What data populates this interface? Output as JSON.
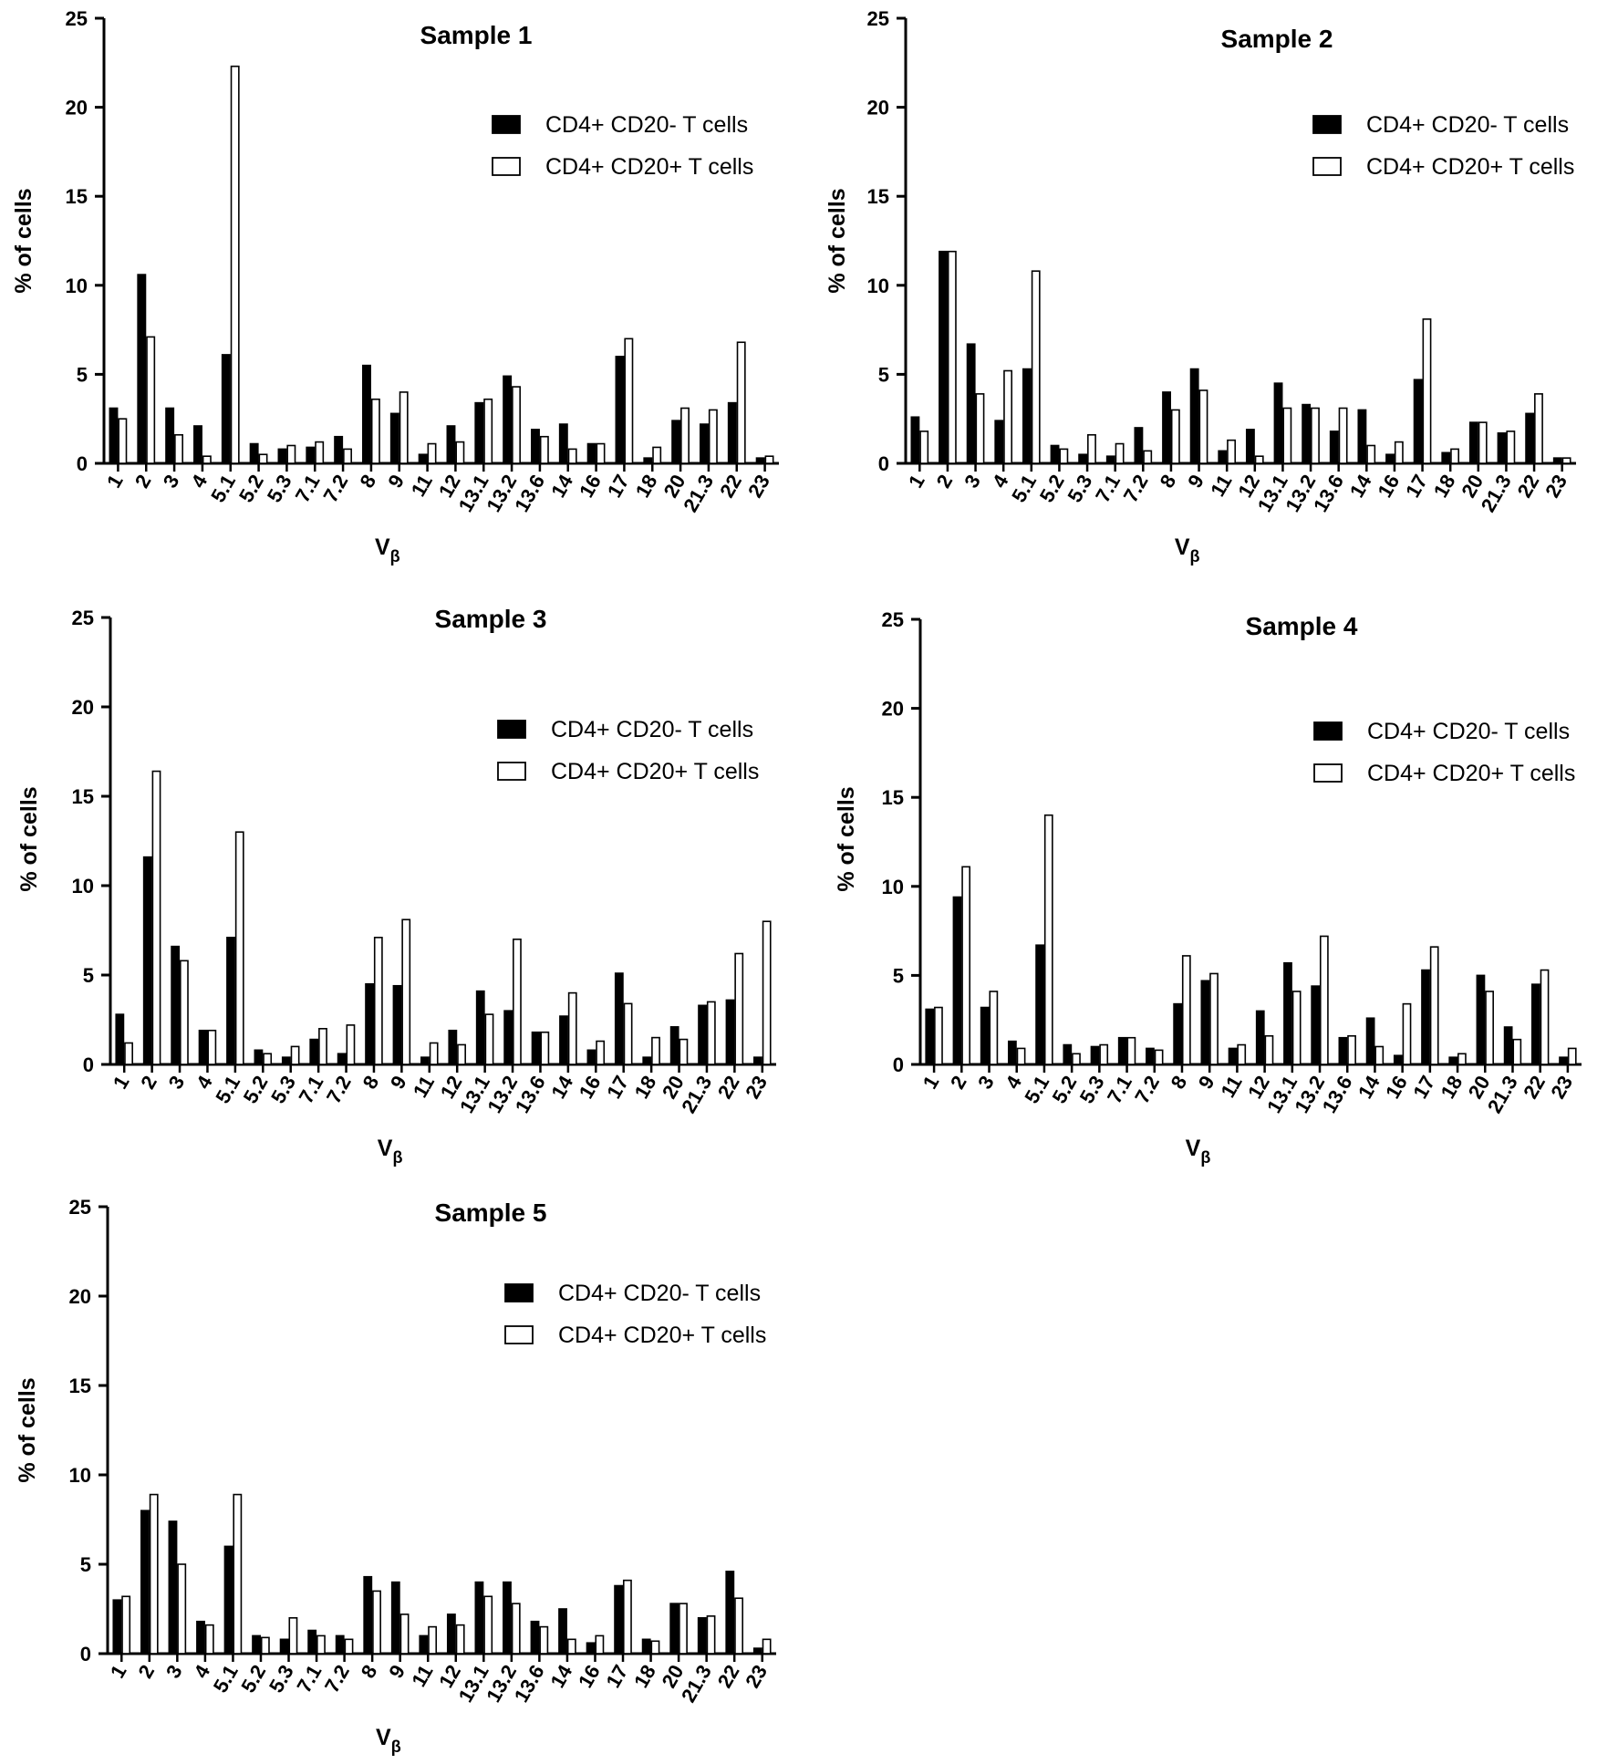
{
  "figure": {
    "chart_data": [
      {
        "type": "bar",
        "title": "Sample 1",
        "xlabel": "V",
        "xlabel_subscript": "β",
        "ylabel": "% of cells",
        "ylim": [
          0,
          25
        ],
        "yticks": [
          "0",
          "5",
          "10",
          "15",
          "20",
          "25"
        ],
        "legend_position": "top-right",
        "categories": [
          "1",
          "2",
          "3",
          "4",
          "5.1",
          "5.2",
          "5.3",
          "7.1",
          "7.2",
          "8",
          "9",
          "11",
          "12",
          "13.1",
          "13.2",
          "13.6",
          "14",
          "16",
          "17",
          "18",
          "20",
          "21.3",
          "22",
          "23"
        ],
        "series": [
          {
            "name": "CD4+ CD20- T cells",
            "fill": "#000000",
            "values": [
              3.1,
              10.6,
              3.1,
              2.1,
              6.1,
              1.1,
              0.8,
              0.9,
              1.5,
              5.5,
              2.8,
              0.5,
              2.1,
              3.4,
              4.9,
              1.9,
              2.2,
              1.1,
              6.0,
              0.3,
              2.4,
              2.2,
              3.4,
              0.3
            ]
          },
          {
            "name": "CD4+ CD20+ T cells",
            "fill": "#ffffff",
            "values": [
              2.5,
              7.1,
              1.6,
              0.4,
              22.3,
              0.5,
              1.0,
              1.2,
              0.8,
              3.6,
              4.0,
              1.1,
              1.2,
              3.6,
              4.3,
              1.5,
              0.8,
              1.1,
              7.0,
              0.9,
              3.1,
              3.0,
              6.8,
              0.4
            ]
          }
        ]
      },
      {
        "type": "bar",
        "title": "Sample 2",
        "xlabel": "V",
        "xlabel_subscript": "β",
        "ylabel": "% of cells",
        "ylim": [
          0,
          25
        ],
        "yticks": [
          "0",
          "5",
          "10",
          "15",
          "20",
          "25"
        ],
        "legend_position": "top-right",
        "categories": [
          "1",
          "2",
          "3",
          "4",
          "5.1",
          "5.2",
          "5.3",
          "7.1",
          "7.2",
          "8",
          "9",
          "11",
          "12",
          "13.1",
          "13.2",
          "13.6",
          "14",
          "16",
          "17",
          "18",
          "20",
          "21.3",
          "22",
          "23"
        ],
        "series": [
          {
            "name": "CD4+ CD20- T cells",
            "fill": "#000000",
            "values": [
              2.6,
              11.9,
              6.7,
              2.4,
              5.3,
              1.0,
              0.5,
              0.4,
              2.0,
              4.0,
              5.3,
              0.7,
              1.9,
              4.5,
              3.3,
              1.8,
              3.0,
              0.5,
              4.7,
              0.6,
              2.3,
              1.7,
              2.8,
              0.3
            ]
          },
          {
            "name": "CD4+ CD20+ T cells",
            "fill": "#ffffff",
            "values": [
              1.8,
              11.9,
              3.9,
              5.2,
              10.8,
              0.8,
              1.6,
              1.1,
              0.7,
              3.0,
              4.1,
              1.3,
              0.4,
              3.1,
              3.1,
              3.1,
              1.0,
              1.2,
              8.1,
              0.8,
              2.3,
              1.8,
              3.9,
              0.3
            ]
          }
        ]
      },
      {
        "type": "bar",
        "title": "Sample 3",
        "xlabel": "V",
        "xlabel_subscript": "β",
        "ylabel": "% of cells",
        "ylim": [
          0,
          25
        ],
        "yticks": [
          "0",
          "5",
          "10",
          "15",
          "20",
          "25"
        ],
        "legend_position": "top-right",
        "categories": [
          "1",
          "2",
          "3",
          "4",
          "5.1",
          "5.2",
          "5.3",
          "7.1",
          "7.2",
          "8",
          "9",
          "11",
          "12",
          "13.1",
          "13.2",
          "13.6",
          "14",
          "16",
          "17",
          "18",
          "20",
          "21.3",
          "22",
          "23"
        ],
        "series": [
          {
            "name": "CD4+ CD20- T cells",
            "fill": "#000000",
            "values": [
              2.8,
              11.6,
              6.6,
              1.9,
              7.1,
              0.8,
              0.4,
              1.4,
              0.6,
              4.5,
              4.4,
              0.4,
              1.9,
              4.1,
              3.0,
              1.8,
              2.7,
              0.8,
              5.1,
              0.4,
              2.1,
              3.3,
              3.6,
              0.4
            ]
          },
          {
            "name": "CD4+ CD20+ T cells",
            "fill": "#ffffff",
            "values": [
              1.2,
              16.4,
              5.8,
              1.9,
              13.0,
              0.6,
              1.0,
              2.0,
              2.2,
              7.1,
              8.1,
              1.2,
              1.1,
              2.8,
              7.0,
              1.8,
              4.0,
              1.3,
              3.4,
              1.5,
              1.4,
              3.5,
              6.2,
              8.0
            ]
          }
        ]
      },
      {
        "type": "bar",
        "title": "Sample 4",
        "xlabel": "V",
        "xlabel_subscript": "β",
        "ylabel": "% of cells",
        "ylim": [
          0,
          25
        ],
        "yticks": [
          "0",
          "5",
          "10",
          "15",
          "20",
          "25"
        ],
        "legend_position": "top-right",
        "categories": [
          "1",
          "2",
          "3",
          "4",
          "5.1",
          "5.2",
          "5.3",
          "7.1",
          "7.2",
          "8",
          "9",
          "11",
          "12",
          "13.1",
          "13.2",
          "13.6",
          "14",
          "16",
          "17",
          "18",
          "20",
          "21.3",
          "22",
          "23"
        ],
        "series": [
          {
            "name": "CD4+ CD20- T cells",
            "fill": "#000000",
            "values": [
              3.1,
              9.4,
              3.2,
              1.3,
              6.7,
              1.1,
              1.0,
              1.5,
              0.9,
              3.4,
              4.7,
              0.9,
              3.0,
              5.7,
              4.4,
              1.5,
              2.6,
              0.5,
              5.3,
              0.4,
              5.0,
              2.1,
              4.5,
              0.4
            ]
          },
          {
            "name": "CD4+ CD20+ T cells",
            "fill": "#ffffff",
            "values": [
              3.2,
              11.1,
              4.1,
              0.9,
              14.0,
              0.6,
              1.1,
              1.5,
              0.8,
              6.1,
              5.1,
              1.1,
              1.6,
              4.1,
              7.2,
              1.6,
              1.0,
              3.4,
              6.6,
              0.6,
              4.1,
              1.4,
              5.3,
              0.9
            ]
          }
        ]
      },
      {
        "type": "bar",
        "title": "Sample 5",
        "xlabel": "V",
        "xlabel_subscript": "β",
        "ylabel": "% of cells",
        "ylim": [
          0,
          25
        ],
        "yticks": [
          "0",
          "5",
          "10",
          "15",
          "20",
          "25"
        ],
        "legend_position": "top-right",
        "categories": [
          "1",
          "2",
          "3",
          "4",
          "5.1",
          "5.2",
          "5.3",
          "7.1",
          "7.2",
          "8",
          "9",
          "11",
          "12",
          "13.1",
          "13.2",
          "13.6",
          "14",
          "16",
          "17",
          "18",
          "20",
          "21.3",
          "22",
          "23"
        ],
        "series": [
          {
            "name": "CD4+ CD20- T cells",
            "fill": "#000000",
            "values": [
              3.0,
              8.0,
              7.4,
              1.8,
              6.0,
              1.0,
              0.8,
              1.3,
              1.0,
              4.3,
              4.0,
              1.0,
              2.2,
              4.0,
              4.0,
              1.8,
              2.5,
              0.6,
              3.8,
              0.8,
              2.8,
              2.0,
              4.6,
              0.3
            ]
          },
          {
            "name": "CD4+ CD20+ T cells",
            "fill": "#ffffff",
            "values": [
              3.2,
              8.9,
              5.0,
              1.6,
              8.9,
              0.9,
              2.0,
              1.0,
              0.8,
              3.5,
              2.2,
              1.5,
              1.6,
              3.2,
              2.8,
              1.5,
              0.8,
              1.0,
              4.1,
              0.7,
              2.8,
              2.1,
              3.1,
              0.8
            ]
          }
        ]
      }
    ]
  }
}
